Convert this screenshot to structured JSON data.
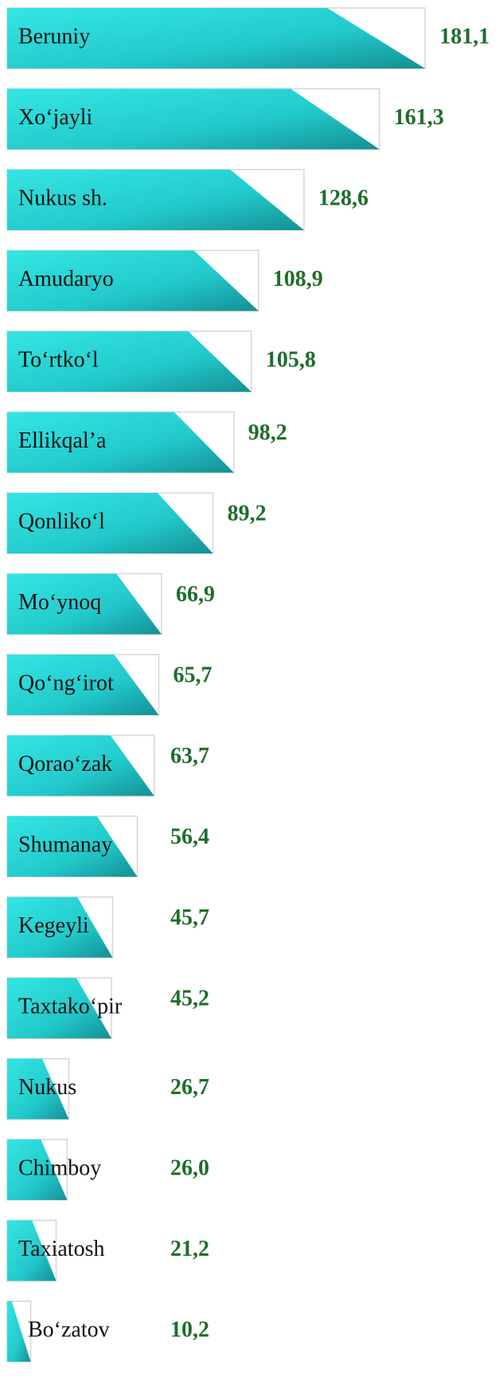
{
  "chart_data": {
    "type": "bar",
    "orientation": "horizontal",
    "color": "#22c9cb",
    "label_color": "#1e6e2a",
    "categories": [
      "Beruniy",
      "Xo‘jayli",
      "Nukus sh.",
      "Amudaryo",
      "To‘rtko‘l",
      "Ellikqal’a",
      "Qonliko‘l",
      "Mo‘ynoq",
      "Qo‘ng‘irot",
      "Qorao‘zak",
      "Shumanay",
      "Kegeyli",
      "Taxtako‘pir",
      "Nukus",
      "Chimboy",
      "Taxiatosh",
      "Bo‘zatov"
    ],
    "values": [
      181.1,
      161.3,
      128.6,
      108.9,
      105.8,
      98.2,
      89.2,
      66.9,
      65.7,
      63.7,
      56.4,
      45.7,
      45.2,
      26.7,
      26.0,
      21.2,
      10.2
    ],
    "value_labels": [
      "181,1",
      "161,3",
      "128,6",
      "108,9",
      "105,8",
      "98,2",
      "89,2",
      "66,9",
      "65,7",
      "63,7",
      "56,4",
      "45,7",
      "45,2",
      "26,7",
      "26,0",
      "21,2",
      "10,2"
    ]
  }
}
